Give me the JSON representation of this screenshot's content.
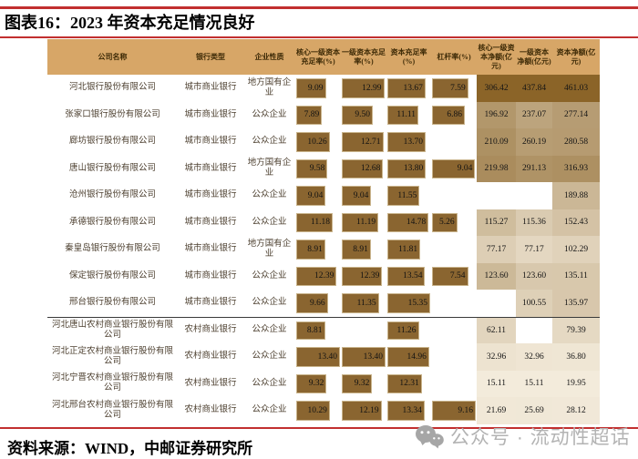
{
  "title": "图表16：2023 年资本充足情况良好",
  "footer": {
    "source": "资料来源：WIND，中邮证券研究所"
  },
  "watermark": {
    "icon": "wechat-icon",
    "text": "公众号 · 流动性超话"
  },
  "colors": {
    "accent_red": "#c22f2f",
    "header_bg": "#d7a667",
    "bar_fill": "#8a6530",
    "heat_light": "#f3ebdb",
    "heat_dark": "#8b6428"
  },
  "chart_data": {
    "type": "table",
    "title": "图表16：2023 年资本充足情况良好",
    "columns": [
      "公司名称",
      "银行类型",
      "企业性质",
      "核心一级资本充足率(%)",
      "一级资本充足率(%)",
      "资本充足率(%)",
      "杠杆率(%)",
      "核心一级资本净额(亿元)",
      "一级资本净额(亿元)",
      "资本净额(亿元)"
    ],
    "bar_columns": [
      3,
      4,
      5,
      6
    ],
    "heat_columns": [
      7,
      8,
      9
    ],
    "group_divider_before_row_index": 9,
    "rows": [
      [
        "河北银行股份有限公司",
        "城市商业银行",
        "地方国有企业",
        9.09,
        12.99,
        13.67,
        7.59,
        306.42,
        437.84,
        461.03
      ],
      [
        "张家口银行股份有限公司",
        "城市商业银行",
        "公众企业",
        7.89,
        9.5,
        11.11,
        6.86,
        196.92,
        237.07,
        277.14
      ],
      [
        "廊坊银行股份有限公司",
        "城市商业银行",
        "公众企业",
        10.26,
        12.71,
        13.7,
        null,
        210.09,
        260.19,
        280.58
      ],
      [
        "唐山银行股份有限公司",
        "城市商业银行",
        "地方国有企业",
        9.58,
        12.68,
        13.8,
        9.04,
        219.98,
        291.13,
        316.93
      ],
      [
        "沧州银行股份有限公司",
        "城市商业银行",
        "公众企业",
        9.04,
        9.04,
        11.55,
        null,
        null,
        null,
        189.88
      ],
      [
        "承德银行股份有限公司",
        "城市商业银行",
        "公众企业",
        11.18,
        11.19,
        14.78,
        5.26,
        115.27,
        115.36,
        152.43
      ],
      [
        "秦皇岛银行股份有限公司",
        "城市商业银行",
        "地方国有企业",
        8.91,
        8.91,
        11.81,
        null,
        77.17,
        77.17,
        102.29
      ],
      [
        "保定银行股份有限公司",
        "城市商业银行",
        "公众企业",
        12.39,
        12.39,
        13.54,
        7.54,
        123.6,
        123.6,
        135.11
      ],
      [
        "邢台银行股份有限公司",
        "城市商业银行",
        "公众企业",
        9.66,
        11.35,
        15.35,
        null,
        null,
        100.55,
        135.97
      ],
      [
        "河北唐山农村商业银行股份有限公司",
        "农村商业银行",
        "公众企业",
        8.81,
        null,
        11.26,
        null,
        62.11,
        null,
        79.39
      ],
      [
        "河北正定农村商业银行股份有限公司",
        "农村商业银行",
        "公众企业",
        13.4,
        13.4,
        14.96,
        null,
        32.96,
        32.96,
        36.8
      ],
      [
        "河北宁晋农村商业银行股份有限公司",
        "农村商业银行",
        "公众企业",
        9.32,
        9.32,
        12.31,
        null,
        15.11,
        15.11,
        19.95
      ],
      [
        "河北邢台农村商业银行股份有限公司",
        "农村商业银行",
        "公众企业",
        10.29,
        12.19,
        13.34,
        9.16,
        21.69,
        25.69,
        28.12
      ]
    ]
  }
}
